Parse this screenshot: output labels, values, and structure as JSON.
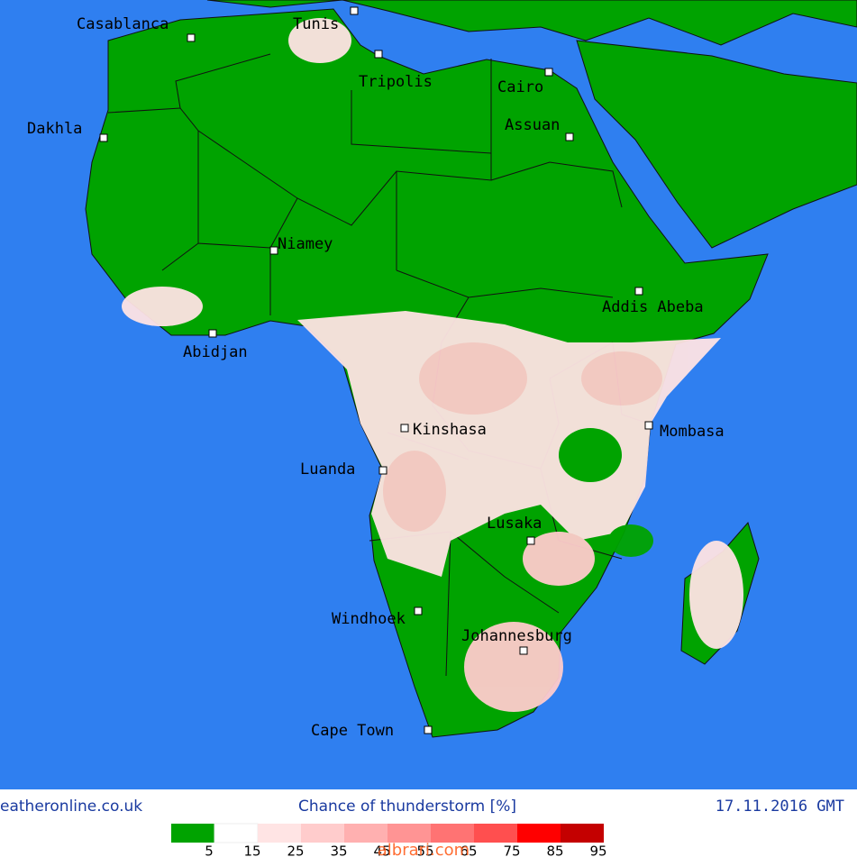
{
  "cities": [
    "Casablanca",
    "Tunis",
    "Tripolis",
    "Cairo",
    "Dakhla",
    "Assuan",
    "Niamey",
    "Addis Abeba",
    "Abidjan",
    "Kinshasa",
    "Mombasa",
    "Luanda",
    "Lusaka",
    "Windhoek",
    "Johannesburg",
    "Cape Town"
  ],
  "footer": {
    "site": "eatheronline.co.uk",
    "title": "Chance of thunderstorm [%]",
    "date": "17.11.2016 GMT"
  },
  "legend": {
    "labels": [
      5,
      15,
      25,
      35,
      45,
      55,
      65,
      75,
      85,
      95
    ],
    "colors": [
      "#00a300",
      "#ffffff",
      "#ffe4e4",
      "#ffcccc",
      "#ffb0b0",
      "#ff9494",
      "#ff7373",
      "#ff4f4f",
      "#ff0000",
      "#c40000"
    ]
  },
  "watermark": "albrari.com"
}
